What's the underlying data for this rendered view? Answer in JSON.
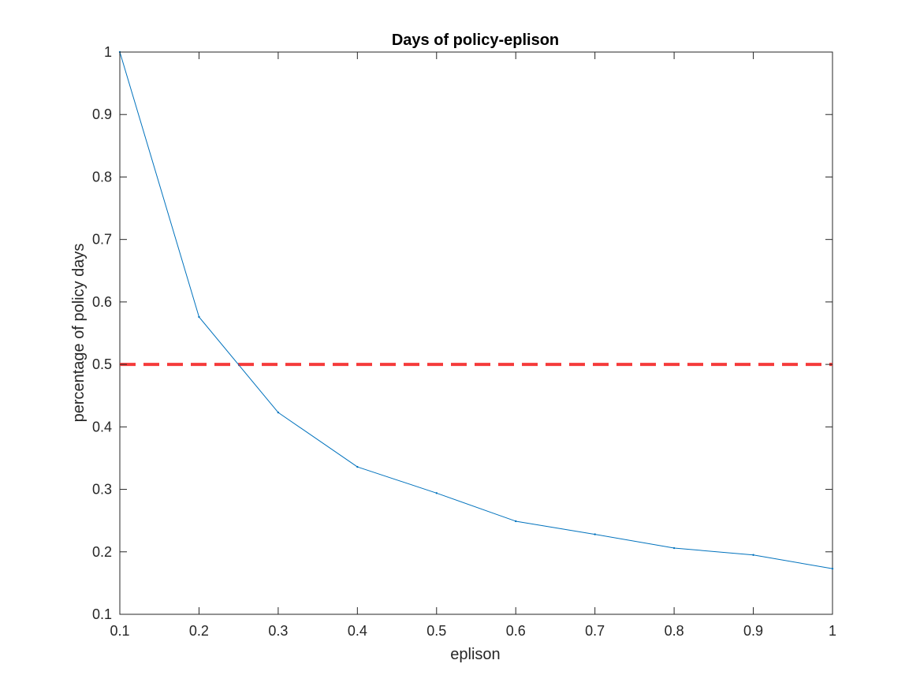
{
  "chart_data": {
    "type": "line",
    "title": "Days of policy-eplison",
    "xlabel": "eplison",
    "ylabel": "percentage of policy days",
    "xlim": [
      0.1,
      1
    ],
    "ylim": [
      0.1,
      1
    ],
    "xticks": [
      "0.1",
      "0.2",
      "0.3",
      "0.4",
      "0.5",
      "0.6",
      "0.7",
      "0.8",
      "0.9",
      "1"
    ],
    "yticks": [
      "0.1",
      "0.2",
      "0.3",
      "0.4",
      "0.5",
      "0.6",
      "0.7",
      "0.8",
      "0.9",
      "1"
    ],
    "grid": false,
    "legend": "none",
    "series": [
      {
        "color": "#0072BD",
        "style": "solid",
        "x": [
          0.1,
          0.2,
          0.3,
          0.4,
          0.5,
          0.6,
          0.7,
          0.8,
          0.9,
          1.0
        ],
        "y": [
          1.0,
          0.576,
          0.423,
          0.336,
          0.294,
          0.249,
          0.228,
          0.206,
          0.195,
          0.173
        ]
      },
      {
        "color": "#F53B3B",
        "style": "dashed",
        "x": [
          0.1,
          1.0
        ],
        "y": [
          0.5,
          0.5
        ]
      }
    ]
  }
}
